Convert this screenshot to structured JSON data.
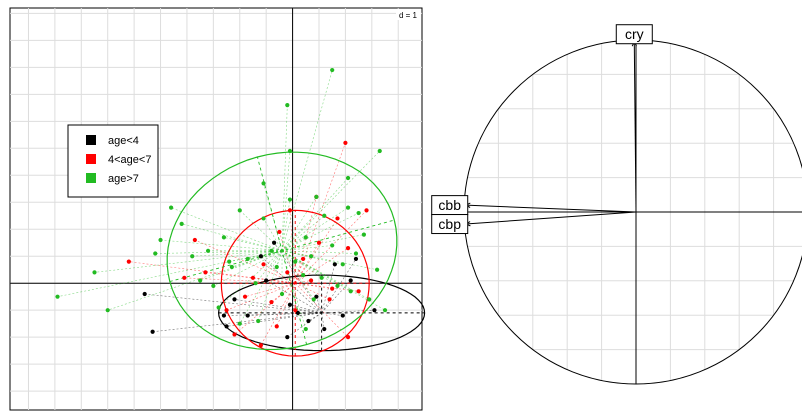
{
  "chart_data": [
    {
      "type": "scatter",
      "title": "",
      "scale_label": "d = 1",
      "xlim": [
        -5.35,
        2.45
      ],
      "ylim": [
        -2.35,
        5.1
      ],
      "grid": true,
      "legend_placement": "left",
      "axes_origin": [
        0,
        0
      ],
      "series": [
        {
          "name": "age<4",
          "color": "#000000",
          "points": [
            [
              -2.8,
              -0.2
            ],
            [
              -2.65,
              -0.9
            ],
            [
              -1.3,
              -0.6
            ],
            [
              -1.25,
              -0.8
            ],
            [
              -1.1,
              -0.3
            ],
            [
              -0.85,
              -0.6
            ],
            [
              -0.6,
              0.5
            ],
            [
              -0.5,
              0.05
            ],
            [
              -0.35,
              0.75
            ],
            [
              -0.1,
              -1.0
            ],
            [
              -0.05,
              -0.4
            ],
            [
              0.1,
              -0.55
            ],
            [
              0.3,
              -0.7
            ],
            [
              0.45,
              -0.25
            ],
            [
              0.6,
              -0.85
            ],
            [
              0.8,
              0.35
            ],
            [
              0.95,
              -0.6
            ],
            [
              1.1,
              0.05
            ],
            [
              1.2,
              0.45
            ],
            [
              1.55,
              -0.5
            ]
          ],
          "ellipse": {
            "center": [
              0.55,
              -0.55
            ],
            "semi_axes": [
              1.95,
              0.7
            ],
            "angle_deg": 0
          }
        },
        {
          "name": "4<age<7",
          "color": "#ff0000",
          "points": [
            [
              -3.1,
              0.4
            ],
            [
              -2.05,
              0.1
            ],
            [
              -1.85,
              0.8
            ],
            [
              -1.25,
              -0.5
            ],
            [
              -1.1,
              -0.95
            ],
            [
              -0.9,
              -0.25
            ],
            [
              -0.75,
              0.1
            ],
            [
              -0.55,
              0.35
            ],
            [
              -0.4,
              -0.35
            ],
            [
              -0.25,
              0.95
            ],
            [
              -0.1,
              0.2
            ],
            [
              0.05,
              -0.5
            ],
            [
              0.2,
              0.45
            ],
            [
              0.35,
              0.05
            ],
            [
              0.5,
              0.75
            ],
            [
              0.7,
              -0.3
            ],
            [
              0.85,
              1.2
            ],
            [
              1.0,
              2.6
            ],
            [
              1.05,
              0.65
            ],
            [
              1.25,
              -0.15
            ],
            [
              1.4,
              1.35
            ],
            [
              1.05,
              -1.0
            ],
            [
              -0.6,
              -1.15
            ],
            [
              -0.05,
              1.35
            ],
            [
              0.45,
              1.6
            ],
            [
              -0.3,
              -0.8
            ],
            [
              -1.65,
              0.2
            ],
            [
              0.75,
              -0.1
            ]
          ],
          "ellipse": {
            "center": [
              0.05,
              0.0
            ],
            "semi_axes": [
              1.4,
              1.35
            ],
            "angle_deg": 0
          }
        },
        {
          "name": "age>7",
          "color": "#22bb22",
          "points": [
            [
              -4.45,
              -0.25
            ],
            [
              -3.75,
              0.2
            ],
            [
              -3.5,
              -0.5
            ],
            [
              -2.6,
              0.55
            ],
            [
              -2.5,
              0.8
            ],
            [
              -2.3,
              1.4
            ],
            [
              -2.1,
              1.1
            ],
            [
              -1.9,
              0.5
            ],
            [
              -1.75,
              0.05
            ],
            [
              -1.6,
              0.6
            ],
            [
              -1.5,
              -0.05
            ],
            [
              -1.4,
              -0.45
            ],
            [
              -1.3,
              0.85
            ],
            [
              -1.15,
              0.3
            ],
            [
              -1.0,
              1.35
            ],
            [
              -1.0,
              -0.75
            ],
            [
              -0.85,
              0.45
            ],
            [
              -0.7,
              0.0
            ],
            [
              -0.55,
              1.2
            ],
            [
              -0.4,
              0.6
            ],
            [
              -0.3,
              0.3
            ],
            [
              -0.2,
              -0.2
            ],
            [
              -0.05,
              1.55
            ],
            [
              -0.1,
              3.3
            ],
            [
              -0.05,
              2.45
            ],
            [
              0.05,
              0.4
            ],
            [
              0.2,
              0.15
            ],
            [
              0.25,
              -0.85
            ],
            [
              0.35,
              0.5
            ],
            [
              0.45,
              1.6
            ],
            [
              0.55,
              0.1
            ],
            [
              0.6,
              1.25
            ],
            [
              0.75,
              0.7
            ],
            [
              0.85,
              -0.05
            ],
            [
              0.95,
              0.35
            ],
            [
              1.05,
              1.4
            ],
            [
              1.1,
              -0.15
            ],
            [
              1.2,
              0.55
            ],
            [
              1.25,
              1.3
            ],
            [
              1.35,
              0.9
            ],
            [
              1.45,
              -0.3
            ],
            [
              1.6,
              0.25
            ],
            [
              1.65,
              2.45
            ],
            [
              1.75,
              -0.5
            ],
            [
              0.75,
              3.95
            ],
            [
              -0.55,
              1.85
            ],
            [
              0.4,
              -0.3
            ],
            [
              -0.65,
              -0.7
            ],
            [
              1.05,
              1.95
            ],
            [
              -1.2,
              0.4
            ],
            [
              0.25,
              0.85
            ]
          ],
          "ellipse": {
            "center": [
              -0.2,
              0.6
            ],
            "semi_axes": [
              2.2,
              1.8
            ],
            "angle_deg": 15
          }
        }
      ]
    },
    {
      "type": "correlation-circle",
      "title": "",
      "grid": true,
      "variables": [
        {
          "label": "cry",
          "x": -0.01,
          "y": 0.99
        },
        {
          "label": "cbb",
          "x": -0.99,
          "y": 0.04
        },
        {
          "label": "cbp",
          "x": -0.99,
          "y": -0.07
        }
      ]
    }
  ]
}
